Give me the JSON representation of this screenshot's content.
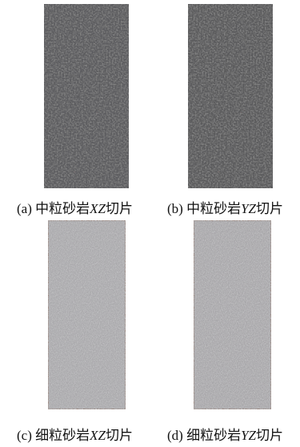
{
  "panels": [
    {
      "label": "(a)",
      "name": "中粒砂岩",
      "plane": "XZ",
      "suffix": "切片"
    },
    {
      "label": "(b)",
      "name": "中粒砂岩",
      "plane": "YZ",
      "suffix": "切片"
    },
    {
      "label": "(c)",
      "name": "细粒砂岩",
      "plane": "XZ",
      "suffix": "切片"
    },
    {
      "label": "(d)",
      "name": "细粒砂岩",
      "plane": "YZ",
      "suffix": "切片"
    }
  ]
}
